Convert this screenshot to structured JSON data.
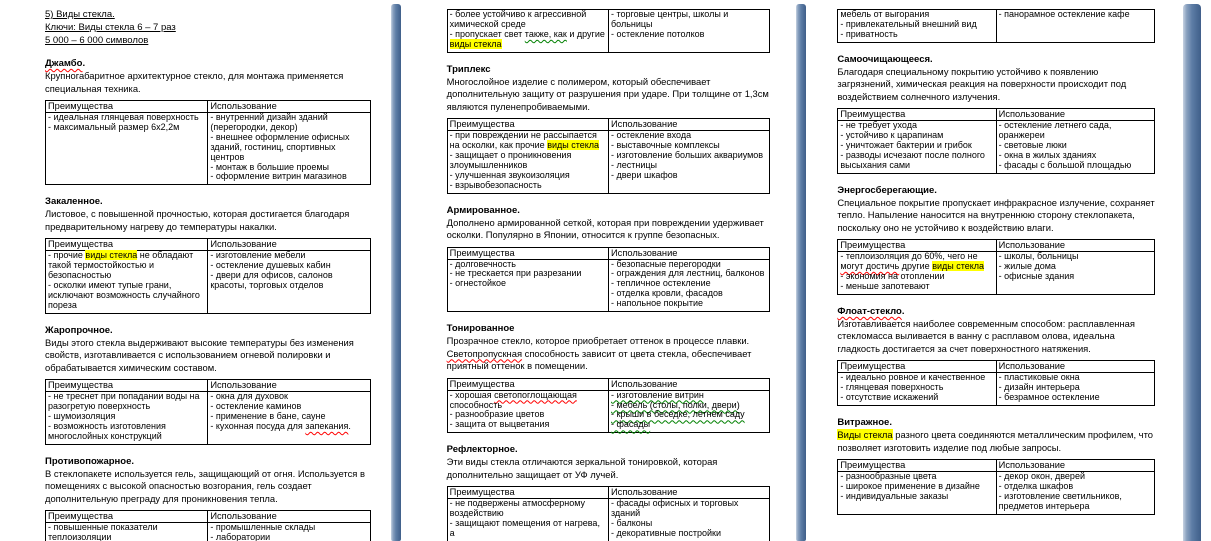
{
  "colors": {
    "highlight": "#ffff00",
    "spell_error": "#ff0000",
    "grammar_error": "#008000",
    "page_divider": "#5878a2"
  },
  "table_headers": {
    "advantages": "Преимущества",
    "usage": "Использование"
  },
  "pages": [
    {
      "name": "page-1",
      "blocks": [
        {
          "type": "intro",
          "lines": [
            "5) Виды стекла.",
            "Ключи: Виды стекла 6 – 7 раз",
            "5 000 – 6 000 символов"
          ]
        },
        {
          "type": "heading",
          "segments": [
            {
              "t": "Джамбо",
              "s": "sp"
            },
            {
              "t": "."
            }
          ]
        },
        {
          "type": "para",
          "segments": [
            {
              "t": "Крупногабаритное архитектурное стекло, для монтажа применяется специальная техника."
            }
          ]
        },
        {
          "type": "table",
          "header": true,
          "advantages": [
            [
              {
                "t": "- идеальная глянцевая поверхность"
              }
            ],
            [
              {
                "t": "- максимальный размер 6х2,2м"
              }
            ]
          ],
          "usage": [
            [
              {
                "t": "- внутренний дизайн зданий (перегородки, декор)"
              }
            ],
            [
              {
                "t": "- внешнее оформление офисных зданий, гостиниц, спортивных центров"
              }
            ],
            [
              {
                "t": "- монтаж в большие проемы"
              }
            ],
            [
              {
                "t": "- оформление витрин магазинов"
              }
            ]
          ]
        },
        {
          "type": "heading",
          "segments": [
            {
              "t": "Закаленное."
            }
          ]
        },
        {
          "type": "para",
          "segments": [
            {
              "t": "Листовое, с повышенной прочностью, которая достигается благодаря предварительному нагреву до температуры накалки."
            }
          ]
        },
        {
          "type": "table",
          "header": true,
          "advantages": [
            [
              {
                "t": "- прочие "
              },
              {
                "t": "виды стекла",
                "s": "hl"
              },
              {
                "t": " не обладают такой термостойкостью и безопасностью"
              }
            ],
            [
              {
                "t": "- осколки имеют тупые грани, исключают возможность случайного пореза"
              }
            ]
          ],
          "usage": [
            [
              {
                "t": "- изготовление мебели"
              }
            ],
            [
              {
                "t": "- остекление душевых кабин"
              }
            ],
            [
              {
                "t": "- двери для офисов, салонов красоты, торговых отделов"
              }
            ]
          ]
        },
        {
          "type": "heading",
          "segments": [
            {
              "t": "Жаропрочное."
            }
          ]
        },
        {
          "type": "para",
          "segments": [
            {
              "t": "Виды этого стекла выдерживают высокие температуры без изменения свойств, изготавливается с использованием огневой полировки и обрабатывается химическим составом."
            }
          ]
        },
        {
          "type": "table",
          "header": true,
          "advantages": [
            [
              {
                "t": "- не треснет при попадании воды на разогретую поверхность"
              }
            ],
            [
              {
                "t": "- шумоизоляция"
              }
            ],
            [
              {
                "t": "- возможность изготовления многослойных конструкций"
              }
            ]
          ],
          "usage": [
            [
              {
                "t": "- окна для духовок"
              }
            ],
            [
              {
                "t": "- остекление каминов"
              }
            ],
            [
              {
                "t": "- применение в бане, сауне"
              }
            ],
            [
              {
                "t": "- кухонная посуда для "
              },
              {
                "t": "запекания",
                "s": "sp"
              },
              {
                "t": "."
              }
            ]
          ]
        },
        {
          "type": "heading",
          "segments": [
            {
              "t": "Противопожарное."
            }
          ]
        },
        {
          "type": "para",
          "segments": [
            {
              "t": "В стеклопакете используется гель, защищающий от огня. Используется в помещениях с высокой опасностью возгорания, гель создает дополнительную преграду для проникновения тепла."
            }
          ]
        },
        {
          "type": "table",
          "header": true,
          "advantages": [
            [
              {
                "t": "- повышенные показатели теплоизоляции"
              }
            ]
          ],
          "usage": [
            [
              {
                "t": "- промышленные склады"
              }
            ],
            [
              {
                "t": "- лаборатории"
              }
            ]
          ]
        }
      ]
    },
    {
      "name": "page-2",
      "blocks": [
        {
          "type": "table",
          "header": false,
          "advantages": [
            [
              {
                "t": "- более устойчиво к агрессивной химической среде"
              }
            ],
            [
              {
                "t": "- пропускает свет "
              },
              {
                "t": "также, как",
                "s": "gr"
              },
              {
                "t": " и другие "
              },
              {
                "t": "виды стекла",
                "s": "hl"
              }
            ]
          ],
          "usage": [
            [
              {
                "t": "- торговые центры, школы и больницы"
              }
            ],
            [
              {
                "t": "- остекление потолков"
              }
            ]
          ]
        },
        {
          "type": "heading",
          "segments": [
            {
              "t": "Триплекс"
            }
          ]
        },
        {
          "type": "para",
          "segments": [
            {
              "t": "Многослойное изделие с полимером, который обеспечивает дополнительную защиту от разрушения при ударе. При толщине от 1,3см являются пуленепробиваемыми."
            }
          ]
        },
        {
          "type": "table",
          "header": true,
          "advantages": [
            [
              {
                "t": "- при повреждении не рассыпается на осколки, как прочие "
              },
              {
                "t": "виды стекла",
                "s": "hl"
              }
            ],
            [
              {
                "t": "- защищает о проникновения злоумышленников"
              }
            ],
            [
              {
                "t": "- улучшенная звукоизоляция"
              }
            ],
            [
              {
                "t": "- взрывобезопасность"
              }
            ]
          ],
          "usage": [
            [
              {
                "t": "- остекление входа"
              }
            ],
            [
              {
                "t": "- выставочные комплексы"
              }
            ],
            [
              {
                "t": "- изготовление больших аквариумов"
              }
            ],
            [
              {
                "t": "- лестницы"
              }
            ],
            [
              {
                "t": "- двери шкафов"
              }
            ]
          ]
        },
        {
          "type": "heading",
          "segments": [
            {
              "t": "Армированное."
            }
          ]
        },
        {
          "type": "para",
          "segments": [
            {
              "t": "Дополнено армированной сеткой, которая при повреждении удерживает осколки. Популярно в Японии, относится к группе безопасных."
            }
          ]
        },
        {
          "type": "table",
          "header": true,
          "advantages": [
            [
              {
                "t": "- долговечность"
              }
            ],
            [
              {
                "t": "- не трескается при разрезании"
              }
            ],
            [
              {
                "t": "- огнестойкое"
              }
            ]
          ],
          "usage": [
            [
              {
                "t": "- безопасные перегородки"
              }
            ],
            [
              {
                "t": "- ограждения для лестниц, балконов"
              }
            ],
            [
              {
                "t": "- тепличное остекление"
              }
            ],
            [
              {
                "t": "- отделка кровли, фасадов"
              }
            ],
            [
              {
                "t": "- напольное покрытие"
              }
            ]
          ]
        },
        {
          "type": "heading",
          "segments": [
            {
              "t": "Тонированное"
            }
          ]
        },
        {
          "type": "para",
          "segments": [
            {
              "t": "Прозрачное стекло, которое приобретает оттенок в процессе плавки. "
            },
            {
              "t": "Светопропускная",
              "s": "sp"
            },
            {
              "t": " способность зависит от цвета стекла, обеспечивает приятный оттенок в помещении."
            }
          ]
        },
        {
          "type": "table",
          "header": true,
          "advantages": [
            [
              {
                "t": "- хорошая "
              },
              {
                "t": "светопоглощающая",
                "s": "sp"
              },
              {
                "t": " способность"
              }
            ],
            [
              {
                "t": "- разнообразие цветов"
              }
            ],
            [
              {
                "t": "- защита от выцветания"
              }
            ]
          ],
          "usage": [
            [
              {
                "t": "- изготовление витрин",
                "s": "gr"
              }
            ],
            [
              {
                "t": "- мебель (столы, полки, двери)",
                "s": "gr"
              }
            ],
            [
              {
                "t": "- крыши в беседке, летнем саду",
                "s": "gr"
              }
            ],
            [
              {
                "t": "- фасады",
                "s": "gr"
              }
            ]
          ]
        },
        {
          "type": "heading",
          "segments": [
            {
              "t": "Рефлекторное."
            }
          ]
        },
        {
          "type": "para",
          "segments": [
            {
              "t": "Эти виды стекла отличаются зеркальной тонировкой, которая дополнительно защищает от УФ лучей."
            }
          ]
        },
        {
          "type": "table",
          "header": true,
          "advantages": [
            [
              {
                "t": "- не подвержены  атмосферному воздействию"
              }
            ],
            [
              {
                "t": "- защищают помещения от нагрева, а"
              }
            ]
          ],
          "usage": [
            [
              {
                "t": "- фасады офисных и торговых зданий"
              }
            ],
            [
              {
                "t": "- балконы"
              }
            ],
            [
              {
                "t": "- декоративные постройки"
              }
            ]
          ]
        }
      ]
    },
    {
      "name": "page-3",
      "blocks": [
        {
          "type": "table",
          "header": false,
          "advantages": [
            [
              {
                "t": "мебель от выгорания"
              }
            ],
            [
              {
                "t": "- привлекательный внешний вид"
              }
            ],
            [
              {
                "t": "- приватность"
              }
            ]
          ],
          "usage": [
            [
              {
                "t": "- панорамное  остекление кафе"
              }
            ]
          ]
        },
        {
          "type": "heading",
          "segments": [
            {
              "t": "Самоочищающееся."
            }
          ]
        },
        {
          "type": "para",
          "segments": [
            {
              "t": "Благодаря специальному покрытию устойчиво к появлению  загрязнений, химическая реакция на поверхности  происходит под воздействием солнечного излучения."
            }
          ]
        },
        {
          "type": "table",
          "header": true,
          "advantages": [
            [
              {
                "t": "- не требует ухода"
              }
            ],
            [
              {
                "t": "- устойчиво к царапинам"
              }
            ],
            [
              {
                "t": "- уничтожает бактерии и грибок"
              }
            ],
            [
              {
                "t": "- разводы исчезают после полного высыхания сами"
              }
            ]
          ],
          "usage": [
            [
              {
                "t": "- остекление летнего сада, оранжереи"
              }
            ],
            [
              {
                "t": "- световые люки"
              }
            ],
            [
              {
                "t": "- окна в жилых зданиях"
              }
            ],
            [
              {
                "t": "- фасады с большой площадью"
              }
            ]
          ]
        },
        {
          "type": "heading",
          "segments": [
            {
              "t": "Энергосберегающие."
            }
          ]
        },
        {
          "type": "para",
          "segments": [
            {
              "t": "Специальное покрытие пропускает инфракрасное  излучение, сохраняет  тепло. Напыление наносится на внутреннюю  сторону стеклопакета, поскольку оно не устойчиво к воздействию влаги."
            }
          ]
        },
        {
          "type": "table",
          "header": true,
          "advantages": [
            [
              {
                "t": "- теплоизоляция до 60%, чего  не "
              },
              {
                "t": "могут достичь",
                "s": "sp"
              },
              {
                "t": " другие "
              },
              {
                "t": "виды стекла",
                "s": "hl"
              }
            ],
            [
              {
                "t": "- экономия на отоплении"
              }
            ],
            [
              {
                "t": "- меньше запотевают"
              }
            ]
          ],
          "usage": [
            [
              {
                "t": "- школы, больницы"
              }
            ],
            [
              {
                "t": "- жилые дома"
              }
            ],
            [
              {
                "t": "- офисные здания"
              }
            ]
          ]
        },
        {
          "type": "heading",
          "segments": [
            {
              "t": "Флоат-стекло",
              "s": "sp"
            },
            {
              "t": "."
            }
          ]
        },
        {
          "type": "para",
          "segments": [
            {
              "t": "Изготавливается наиболее современным  способом: расплавленная  стекломасса выливается в ванну  с расплавом  олова, идеальна гладкость достигается за счет поверхностного  натяжения."
            }
          ]
        },
        {
          "type": "table",
          "header": true,
          "advantages": [
            [
              {
                "t": "- идеально ровное  и качественное"
              }
            ],
            [
              {
                "t": "- глянцевая поверхность"
              }
            ],
            [
              {
                "t": "- отсутствие искажений"
              }
            ]
          ],
          "usage": [
            [
              {
                "t": "- пластиковые окна"
              }
            ],
            [
              {
                "t": "- дизайн интерьера"
              }
            ],
            [
              {
                "t": "- безрамное остекление"
              }
            ]
          ]
        },
        {
          "type": "heading",
          "segments": [
            {
              "t": "Витражное."
            }
          ]
        },
        {
          "type": "para",
          "segments": [
            {
              "t": "Виды стекла",
              "s": "hl"
            },
            {
              "t": " разного цвета  соединяются металлическим профилем, что позволяет изготовить изделие под любые запросы."
            }
          ]
        },
        {
          "type": "table",
          "header": true,
          "advantages": [
            [
              {
                "t": "- разнообразные  цвета"
              }
            ],
            [
              {
                "t": "- широкое применение  в дизайне"
              }
            ],
            [
              {
                "t": "- индивидуальные заказы"
              }
            ]
          ],
          "usage": [
            [
              {
                "t": "- декор окон, дверей"
              }
            ],
            [
              {
                "t": "- отделка шкафов"
              }
            ],
            [
              {
                "t": "- изготовление светильников, предметов интерьера"
              }
            ]
          ]
        }
      ]
    }
  ]
}
